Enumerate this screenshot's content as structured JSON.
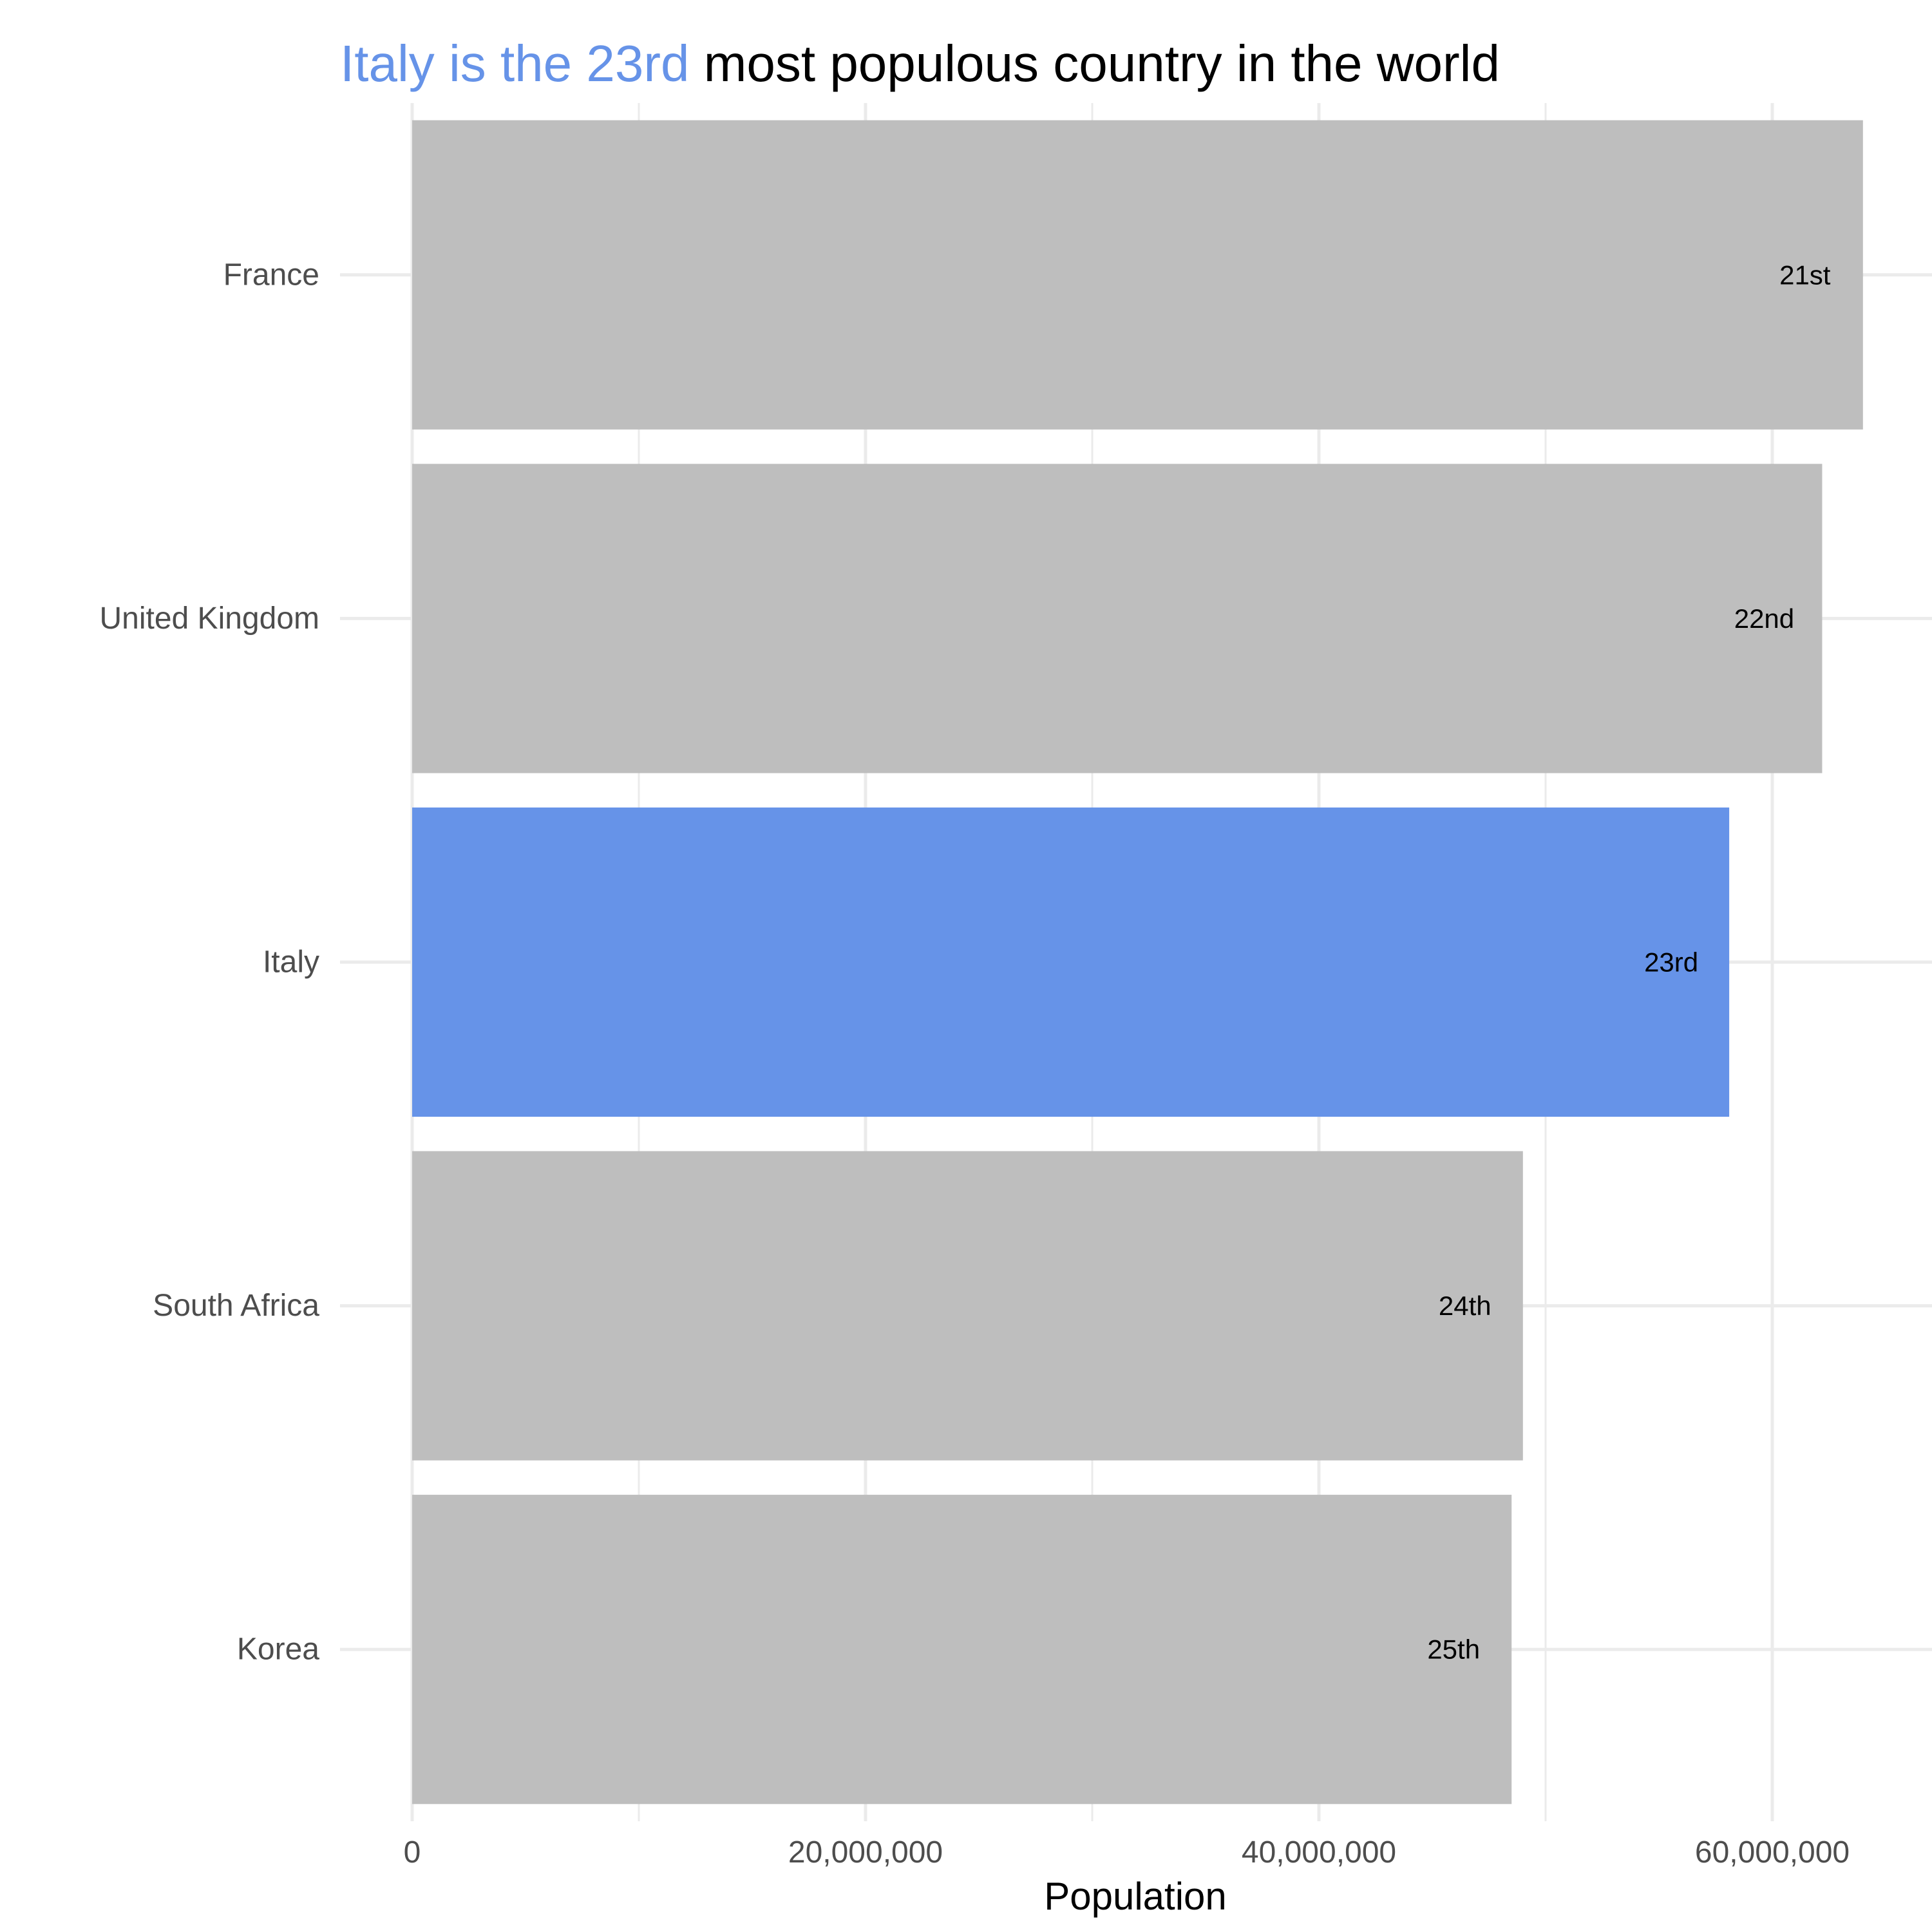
{
  "colors": {
    "highlight": "#6693E8",
    "bar": "#BEBEBE",
    "grid": "#EBEBEB",
    "text_muted": "#4D4D4D",
    "text": "#000000"
  },
  "chart_data": {
    "type": "bar",
    "orientation": "horizontal",
    "title": {
      "highlight": "Italy is the 23rd",
      "rest": " most populous country in the world"
    },
    "xlabel": "Population",
    "ylabel": "",
    "xlim": [
      0,
      67000000
    ],
    "x_ticks": [
      {
        "value": 0,
        "label": "0"
      },
      {
        "value": 20000000,
        "label": "20,000,000"
      },
      {
        "value": 40000000,
        "label": "40,000,000"
      },
      {
        "value": 60000000,
        "label": "60,000,000"
      }
    ],
    "grid": true,
    "legend": "none",
    "categories": [
      "France",
      "United Kingdom",
      "Italy",
      "South Africa",
      "Korea"
    ],
    "values": [
      64000000,
      62200000,
      58100000,
      49000000,
      48500000
    ],
    "bar_labels": [
      "21st",
      "22nd",
      "23rd",
      "24th",
      "25th"
    ],
    "highlighted": "Italy"
  }
}
